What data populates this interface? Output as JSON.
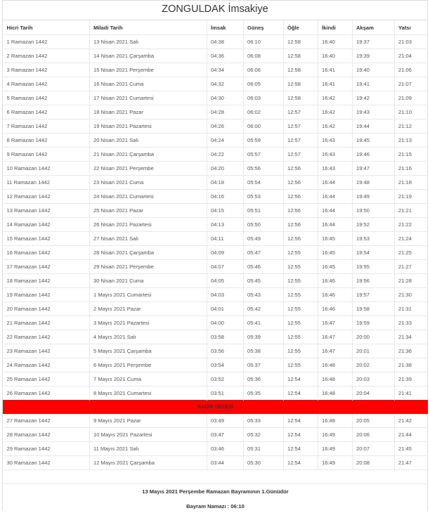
{
  "title": "ZONGULDAK İmsakiye",
  "columns": [
    "Hicri Tarih",
    "Miladi Tarih",
    "İmsak",
    "Güneş",
    "Öğle",
    "İkindi",
    "Akşam",
    "Yatsı"
  ],
  "rows": [
    [
      "1 Ramazan 1442",
      "13 Nisan 2021 Salı",
      "04:38",
      "06:10",
      "12:58",
      "16:40",
      "19:37",
      "21:03"
    ],
    [
      "2 Ramazan 1442",
      "14 Nisan 2021 Çarşamba",
      "04:36",
      "06:08",
      "12:58",
      "16:40",
      "19:39",
      "21:04"
    ],
    [
      "3 Ramazan 1442",
      "15 Nisan 2021 Perşembe",
      "04:34",
      "06:06",
      "12:58",
      "16:41",
      "19:40",
      "21:06"
    ],
    [
      "4 Ramazan 1442",
      "16 Nisan 2021 Cuma",
      "04:32",
      "06:05",
      "12:58",
      "16:41",
      "19:41",
      "21:07"
    ],
    [
      "5 Ramazan 1442",
      "17 Nisan 2021 Cumartesi",
      "04:30",
      "06:03",
      "12:58",
      "16:42",
      "19:42",
      "21:09"
    ],
    [
      "6 Ramazan 1442",
      "18 Nisan 2021 Pazar",
      "04:28",
      "06:02",
      "12:57",
      "16:42",
      "19:43",
      "21:10"
    ],
    [
      "7 Ramazan 1442",
      "19 Nisan 2021 Pazartesi",
      "04:26",
      "06:00",
      "12:57",
      "16:42",
      "19:44",
      "21:12"
    ],
    [
      "8 Ramazan 1442",
      "20 Nisan 2021 Salı",
      "04:24",
      "05:59",
      "12:57",
      "16:43",
      "19:45",
      "21:13"
    ],
    [
      "9 Ramazan 1442",
      "21 Nisan 2021 Çarşamba",
      "04:22",
      "05:57",
      "12:57",
      "16:43",
      "19:46",
      "21:15"
    ],
    [
      "10 Ramazan 1442",
      "22 Nisan 2021 Perşembe",
      "04:20",
      "05:56",
      "12:56",
      "16:43",
      "19:47",
      "21:16"
    ],
    [
      "11 Ramazan 1442",
      "23 Nisan 2021 Cuma",
      "04:18",
      "05:54",
      "12:56",
      "16:44",
      "19:48",
      "21:18"
    ],
    [
      "12 Ramazan 1442",
      "24 Nisan 2021 Cumartesi",
      "04:16",
      "05:53",
      "12:56",
      "16:44",
      "19:49",
      "21:19"
    ],
    [
      "13 Ramazan 1442",
      "25 Nisan 2021 Pazar",
      "04:15",
      "05:51",
      "12:56",
      "16:44",
      "19:50",
      "21:21"
    ],
    [
      "14 Ramazan 1442",
      "26 Nisan 2021 Pazartesi",
      "04:13",
      "05:50",
      "12:56",
      "16:44",
      "19:52",
      "21:22"
    ],
    [
      "15 Ramazan 1442",
      "27 Nisan 2021 Salı",
      "04:11",
      "05:49",
      "12:56",
      "16:45",
      "19:53",
      "21:24"
    ],
    [
      "16 Ramazan 1442",
      "28 Nisan 2021 Çarşamba",
      "04:09",
      "05:47",
      "12:55",
      "16:45",
      "19:54",
      "21:25"
    ],
    [
      "17 Ramazan 1442",
      "29 Nisan 2021 Perşembe",
      "04:07",
      "05:46",
      "12:55",
      "16:45",
      "19:55",
      "21:27"
    ],
    [
      "18 Ramazan 1442",
      "30 Nisan 2021 Cuma",
      "04:05",
      "05:45",
      "12:55",
      "16:46",
      "19:56",
      "21:28"
    ],
    [
      "19 Ramazan 1442",
      "1 Mayıs 2021 Cumartesi",
      "04:03",
      "05:43",
      "12:55",
      "16:46",
      "19:57",
      "21:30"
    ],
    [
      "20 Ramazan 1442",
      "2 Mayıs 2021 Pazar",
      "04:01",
      "05:42",
      "12:55",
      "16:46",
      "19:58",
      "21:31"
    ],
    [
      "21 Ramazan 1442",
      "3 Mayıs 2021 Pazartesi",
      "04:00",
      "05:41",
      "12:55",
      "16:47",
      "19:59",
      "21:33"
    ],
    [
      "22 Ramazan 1442",
      "4 Mayıs 2021 Salı",
      "03:58",
      "05:39",
      "12:55",
      "16:47",
      "20:00",
      "21:34"
    ],
    [
      "23 Ramazan 1442",
      "5 Mayıs 2021 Çarşamba",
      "03:56",
      "05:38",
      "12:55",
      "16:47",
      "20:01",
      "21:36"
    ],
    [
      "24 Ramazan 1442",
      "6 Mayıs 2021 Perşembe",
      "03:54",
      "05:37",
      "12:55",
      "16:48",
      "20:02",
      "21:38"
    ],
    [
      "25 Ramazan 1442",
      "7 Mayıs 2021 Cuma",
      "03:52",
      "05:36",
      "12:54",
      "16:48",
      "20:03",
      "21:39"
    ],
    [
      "26 Ramazan 1442",
      "8 Mayıs 2021 Cumartesi",
      "03:51",
      "05:35",
      "12:54",
      "16:48",
      "20:04",
      "21:41"
    ],
    {
      "special": "KADİR GECESİ"
    },
    [
      "27 Ramazan 1442",
      "9 Mayıs 2021 Pazar",
      "03:49",
      "05:33",
      "12:54",
      "16:48",
      "20:05",
      "21:42"
    ],
    [
      "28 Ramazan 1442",
      "10 Mayıs 2021 Pazartesi",
      "03:47",
      "05:32",
      "12:54",
      "16:49",
      "20:06",
      "21:44"
    ],
    [
      "29 Ramazan 1442",
      "11 Mayıs 2021 Salı",
      "03:46",
      "05:31",
      "12:54",
      "16:49",
      "20:07",
      "21:45"
    ],
    [
      "30 Ramazan 1442",
      "12 Mayıs 2021 Çarşamba",
      "03:44",
      "05:30",
      "12:54",
      "16:49",
      "20:08",
      "21:47"
    ]
  ],
  "special_color": "#ff0000",
  "footer": {
    "bayram": "13 Mayıs 2021 Perşembe Ramazan Bayramının 1.Günüdür",
    "namaz": "Bayram Namazı : 06:10"
  }
}
